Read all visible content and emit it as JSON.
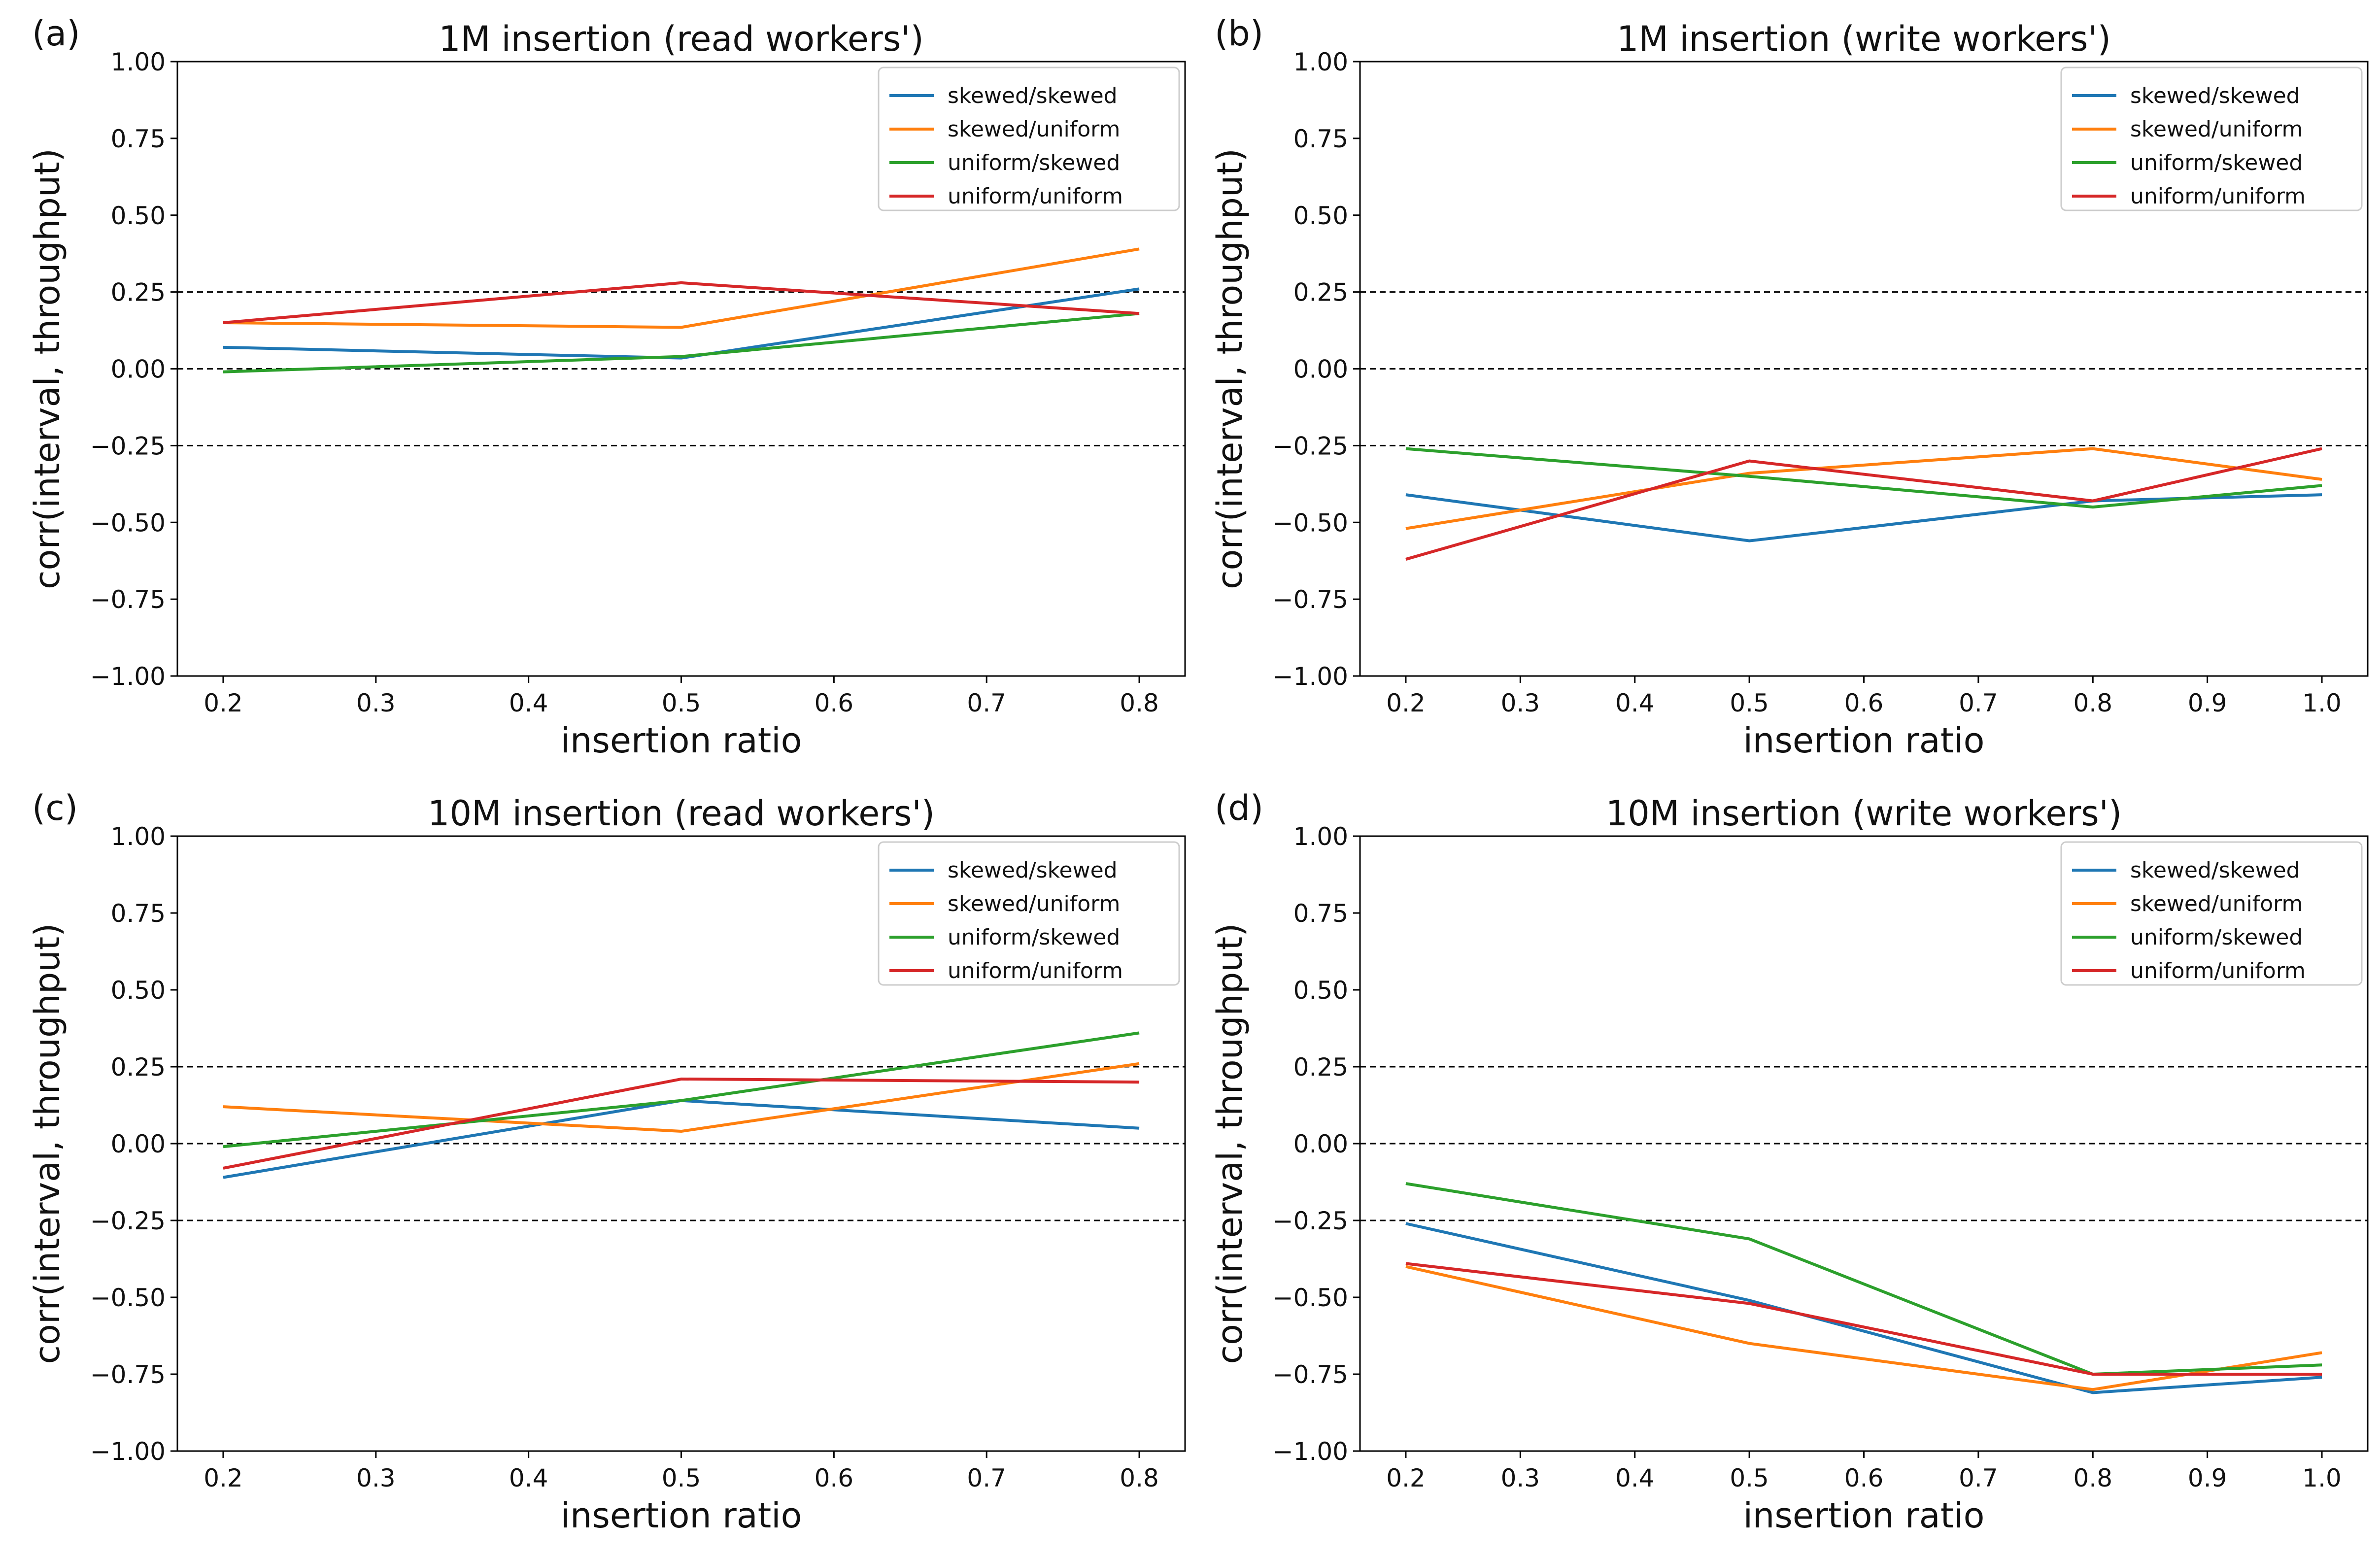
{
  "figure": {
    "colors": {
      "skewed/skewed": "#1f77b4",
      "skewed/uniform": "#ff7f0e",
      "uniform/skewed": "#2ca02c",
      "uniform/uniform": "#d62728",
      "reference_line": "#000000",
      "axes": "#000000"
    }
  },
  "chart_data": [
    {
      "panel": "(a)",
      "type": "line",
      "title": "1M insertion (read workers')",
      "xlabel": "insertion ratio",
      "ylabel": "corr(interval, throughput)",
      "xlim": [
        0.17,
        0.83
      ],
      "ylim": [
        -1.0,
        1.0
      ],
      "xticks": [
        "0.2",
        "0.3",
        "0.4",
        "0.5",
        "0.6",
        "0.7",
        "0.8"
      ],
      "yticks": [
        "1.00",
        "0.75",
        "0.50",
        "0.25",
        "0.00",
        "−0.25",
        "−0.50",
        "−0.75",
        "−1.00"
      ],
      "reference_lines": [
        0.25,
        0.0,
        -0.25
      ],
      "legend_position": "top-right",
      "x": [
        0.2,
        0.5,
        0.8
      ],
      "series": [
        {
          "name": "skewed/skewed",
          "values": [
            0.07,
            0.035,
            0.26
          ]
        },
        {
          "name": "skewed/uniform",
          "values": [
            0.15,
            0.135,
            0.39
          ]
        },
        {
          "name": "uniform/skewed",
          "values": [
            -0.01,
            0.04,
            0.18
          ]
        },
        {
          "name": "uniform/uniform",
          "values": [
            0.15,
            0.28,
            0.18
          ]
        }
      ]
    },
    {
      "panel": "(b)",
      "type": "line",
      "title": "1M insertion (write workers')",
      "xlabel": "insertion ratio",
      "ylabel": "corr(interval, throughput)",
      "xlim": [
        0.16,
        1.04
      ],
      "ylim": [
        -1.0,
        1.0
      ],
      "xticks": [
        "0.2",
        "0.3",
        "0.4",
        "0.5",
        "0.6",
        "0.7",
        "0.8",
        "0.9",
        "1.0"
      ],
      "yticks": [
        "1.00",
        "0.75",
        "0.50",
        "0.25",
        "0.00",
        "−0.25",
        "−0.50",
        "−0.75",
        "−1.00"
      ],
      "reference_lines": [
        0.25,
        0.0,
        -0.25
      ],
      "legend_position": "top-right",
      "x": [
        0.2,
        0.5,
        0.8,
        1.0
      ],
      "series": [
        {
          "name": "skewed/skewed",
          "values": [
            -0.41,
            -0.56,
            -0.43,
            -0.41
          ]
        },
        {
          "name": "skewed/uniform",
          "values": [
            -0.52,
            -0.34,
            -0.26,
            -0.36
          ]
        },
        {
          "name": "uniform/skewed",
          "values": [
            -0.26,
            -0.35,
            -0.45,
            -0.38
          ]
        },
        {
          "name": "uniform/uniform",
          "values": [
            -0.62,
            -0.3,
            -0.43,
            -0.26
          ]
        }
      ]
    },
    {
      "panel": "(c)",
      "type": "line",
      "title": "10M insertion (read workers')",
      "xlabel": "insertion ratio",
      "ylabel": "corr(interval, throughput)",
      "xlim": [
        0.17,
        0.83
      ],
      "ylim": [
        -1.0,
        1.0
      ],
      "xticks": [
        "0.2",
        "0.3",
        "0.4",
        "0.5",
        "0.6",
        "0.7",
        "0.8"
      ],
      "yticks": [
        "1.00",
        "0.75",
        "0.50",
        "0.25",
        "0.00",
        "−0.25",
        "−0.50",
        "−0.75",
        "−1.00"
      ],
      "reference_lines": [
        0.25,
        0.0,
        -0.25
      ],
      "legend_position": "top-right",
      "x": [
        0.2,
        0.5,
        0.8
      ],
      "series": [
        {
          "name": "skewed/skewed",
          "values": [
            -0.11,
            0.14,
            0.05
          ]
        },
        {
          "name": "skewed/uniform",
          "values": [
            0.12,
            0.04,
            0.26
          ]
        },
        {
          "name": "uniform/skewed",
          "values": [
            -0.01,
            0.14,
            0.36
          ]
        },
        {
          "name": "uniform/uniform",
          "values": [
            -0.08,
            0.21,
            0.2
          ]
        }
      ]
    },
    {
      "panel": "(d)",
      "type": "line",
      "title": "10M insertion (write workers')",
      "xlabel": "insertion ratio",
      "ylabel": "corr(interval, throughput)",
      "xlim": [
        0.16,
        1.04
      ],
      "ylim": [
        -1.0,
        1.0
      ],
      "xticks": [
        "0.2",
        "0.3",
        "0.4",
        "0.5",
        "0.6",
        "0.7",
        "0.8",
        "0.9",
        "1.0"
      ],
      "yticks": [
        "1.00",
        "0.75",
        "0.50",
        "0.25",
        "0.00",
        "−0.25",
        "−0.50",
        "−0.75",
        "−1.00"
      ],
      "reference_lines": [
        0.25,
        0.0,
        -0.25
      ],
      "legend_position": "top-right",
      "x": [
        0.2,
        0.5,
        0.8,
        1.0
      ],
      "series": [
        {
          "name": "skewed/skewed",
          "values": [
            -0.26,
            -0.51,
            -0.81,
            -0.76
          ]
        },
        {
          "name": "skewed/uniform",
          "values": [
            -0.4,
            -0.65,
            -0.8,
            -0.68
          ]
        },
        {
          "name": "uniform/skewed",
          "values": [
            -0.13,
            -0.31,
            -0.75,
            -0.72
          ]
        },
        {
          "name": "uniform/uniform",
          "values": [
            -0.39,
            -0.52,
            -0.75,
            -0.75
          ]
        }
      ]
    }
  ]
}
